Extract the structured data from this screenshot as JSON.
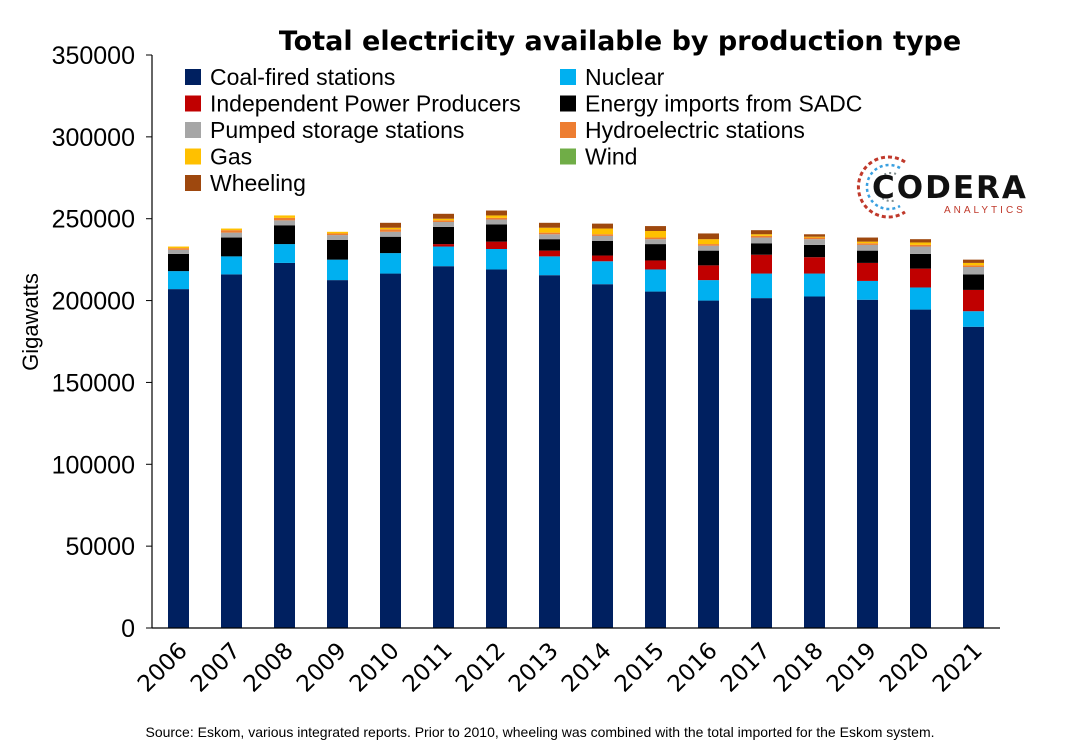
{
  "chart_data": {
    "type": "bar",
    "stacked": true,
    "title": "Total electricity available by production type",
    "ylabel": "Gigawatts",
    "xlabel": "",
    "ylim": [
      0,
      350000
    ],
    "yticks": [
      0,
      50000,
      100000,
      150000,
      200000,
      250000,
      300000,
      350000
    ],
    "grid": false,
    "legend_position": "top",
    "categories": [
      "2006",
      "2007",
      "2008",
      "2009",
      "2010",
      "2011",
      "2012",
      "2013",
      "2014",
      "2015",
      "2016",
      "2017",
      "2018",
      "2019",
      "2020",
      "2021"
    ],
    "series": [
      {
        "name": "Coal-fired stations",
        "color": "#002060",
        "values": [
          207000,
          216000,
          223000,
          212500,
          216500,
          221000,
          219000,
          215500,
          210000,
          205500,
          200000,
          201500,
          202500,
          200500,
          194500,
          184000
        ]
      },
      {
        "name": "Nuclear",
        "color": "#00B0F0",
        "values": [
          11000,
          11000,
          11500,
          12500,
          12500,
          12000,
          12500,
          11500,
          14000,
          13500,
          12500,
          15000,
          14000,
          11500,
          13500,
          9500
        ]
      },
      {
        "name": "Independent Power Producers",
        "color": "#C00000",
        "values": [
          0,
          0,
          0,
          0,
          0,
          1500,
          4500,
          3500,
          3500,
          5500,
          9000,
          11500,
          10000,
          11000,
          11500,
          13000
        ]
      },
      {
        "name": "Energy imports from SADC",
        "color": "#000000",
        "values": [
          10500,
          11500,
          11500,
          12000,
          10000,
          10500,
          10500,
          7000,
          9000,
          10000,
          9000,
          7000,
          7500,
          7500,
          9000,
          9500
        ]
      },
      {
        "name": "Pumped storage stations",
        "color": "#A6A6A6",
        "values": [
          2500,
          3000,
          3000,
          3000,
          3000,
          3000,
          3000,
          3000,
          3000,
          3000,
          3000,
          3500,
          3500,
          3500,
          4500,
          4500
        ]
      },
      {
        "name": "Hydroelectric stations",
        "color": "#ED7D31",
        "values": [
          1000,
          1500,
          1500,
          1000,
          1500,
          1000,
          1000,
          1000,
          1000,
          1000,
          1000,
          1000,
          1000,
          1000,
          1000,
          1000
        ]
      },
      {
        "name": "Gas",
        "color": "#FFC000",
        "values": [
          1000,
          1000,
          1500,
          1000,
          1000,
          1000,
          1500,
          3000,
          3500,
          4000,
          3000,
          1000,
          500,
          1000,
          1500,
          1500
        ]
      },
      {
        "name": "Wind",
        "color": "#70AD47",
        "values": [
          0,
          0,
          0,
          0,
          0,
          0,
          0,
          0,
          0,
          0,
          0,
          0,
          0,
          0,
          0,
          0
        ]
      },
      {
        "name": "Wheeling",
        "color": "#9E480E",
        "values": [
          0,
          0,
          0,
          0,
          3000,
          3000,
          3000,
          3000,
          3000,
          3000,
          3500,
          2500,
          1500,
          2500,
          2000,
          2000
        ]
      }
    ],
    "source_note": "Source: Eskom, various integrated reports. Prior to 2010, wheeling was combined with the total imported for the Eskom system."
  },
  "logo": {
    "name": "CODERA",
    "tagline": "ANALYTICS"
  }
}
